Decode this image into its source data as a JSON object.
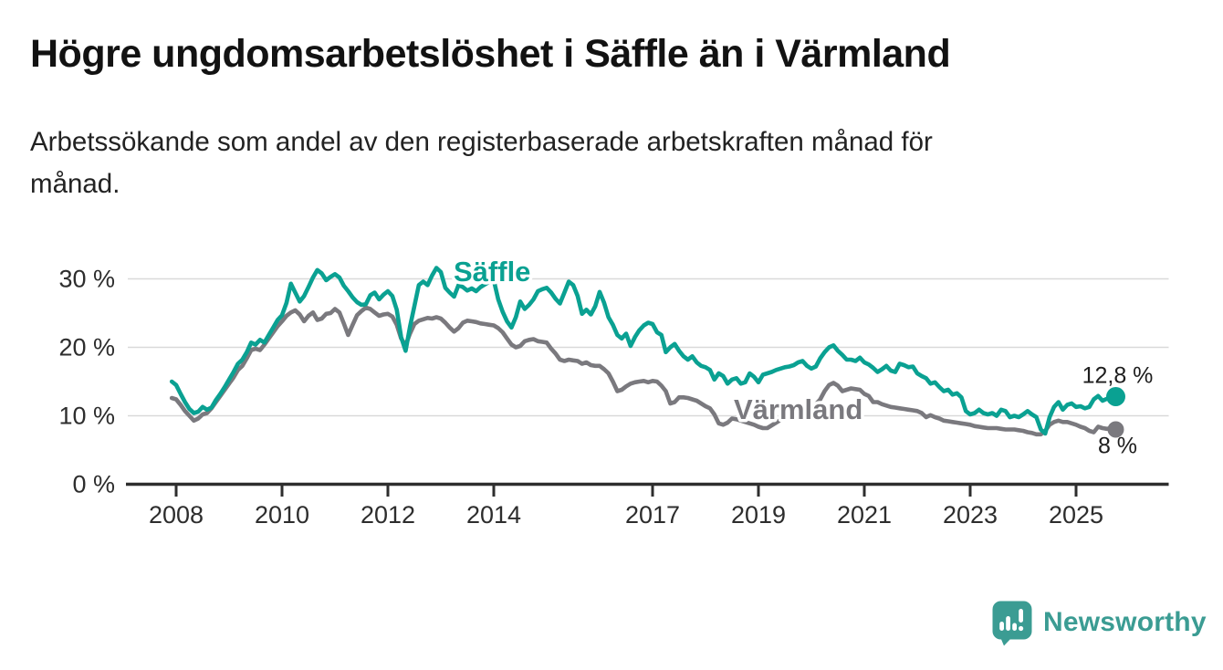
{
  "header": {
    "title": "Högre ungdomsarbetslöshet i Säffle än i Värmland",
    "subtitle_lines": [
      "Arbetssökande som andel av den registerbaserade arbetskraften månad för",
      "månad."
    ]
  },
  "chart_data": {
    "type": "line",
    "title": "Högre ungdomsarbetslöshet i Säffle än i Värmland",
    "subtitle": "Arbetssökande som andel av den registerbaserade arbetskraften månad för månad.",
    "unit": "%",
    "x_frequency": "monthly",
    "x_start": "2007-12",
    "x_end": "2025-10",
    "x_tick_years": [
      2008,
      2010,
      2012,
      2014,
      2017,
      2019,
      2021,
      2023,
      2025
    ],
    "y_ticks": [
      {
        "value": 0,
        "label": "0 %"
      },
      {
        "value": 10,
        "label": "10 %"
      },
      {
        "value": 20,
        "label": "20 %"
      },
      {
        "value": 30,
        "label": "30 %"
      }
    ],
    "ylim": [
      0,
      33
    ],
    "grid": "horizontal",
    "legend_position": "inline-labels",
    "series": [
      {
        "name": "Säffle",
        "color": "#0aa192",
        "end_label": "12,8 %",
        "last_value": 12.8,
        "values": [
          15.0,
          14.5,
          13.2,
          12.0,
          11.0,
          10.4,
          10.6,
          11.3,
          10.9,
          11.2,
          12.3,
          13.2,
          14.2,
          15.3,
          16.4,
          17.6,
          18.2,
          19.3,
          20.7,
          20.4,
          21.1,
          20.7,
          21.8,
          22.9,
          24.0,
          24.7,
          26.5,
          29.3,
          28.0,
          26.7,
          27.5,
          28.8,
          30.2,
          31.3,
          30.8,
          29.8,
          30.3,
          30.7,
          30.2,
          29.0,
          28.2,
          27.3,
          26.6,
          26.2,
          26.3,
          27.6,
          28.0,
          27.0,
          27.7,
          28.2,
          27.5,
          25.5,
          21.5,
          19.5,
          23.0,
          26.0,
          29.1,
          29.6,
          29.1,
          30.5,
          31.6,
          31.0,
          28.7,
          28.0,
          27.4,
          29.1,
          28.8,
          28.3,
          28.6,
          28.2,
          28.8,
          29.2,
          29.6,
          29.8,
          27.0,
          25.2,
          23.8,
          22.9,
          24.4,
          26.7,
          25.6,
          26.2,
          27.0,
          28.2,
          28.5,
          28.7,
          28.0,
          27.1,
          26.4,
          28.0,
          29.6,
          29.1,
          27.5,
          24.9,
          25.5,
          24.8,
          26.0,
          28.1,
          26.5,
          24.4,
          23.3,
          21.8,
          21.3,
          22.0,
          20.2,
          21.5,
          22.5,
          23.2,
          23.6,
          23.4,
          22.2,
          21.8,
          19.3,
          20.0,
          20.5,
          19.5,
          18.7,
          18.2,
          18.7,
          17.8,
          17.3,
          17.1,
          16.7,
          15.3,
          16.2,
          15.8,
          14.7,
          15.3,
          15.5,
          14.7,
          14.9,
          16.2,
          15.7,
          14.9,
          16.0,
          16.2,
          16.4,
          16.7,
          16.9,
          17.1,
          17.2,
          17.4,
          17.8,
          18.0,
          17.3,
          16.9,
          17.2,
          18.4,
          19.3,
          20.0,
          20.3,
          19.5,
          18.9,
          18.2,
          18.2,
          18.0,
          18.5,
          17.8,
          17.5,
          17.0,
          16.4,
          16.8,
          17.3,
          16.6,
          16.4,
          17.6,
          17.4,
          17.1,
          17.2,
          16.2,
          15.8,
          15.5,
          14.7,
          14.9,
          14.2,
          13.6,
          13.8,
          13.1,
          13.3,
          12.7,
          10.7,
          10.2,
          10.4,
          10.9,
          10.4,
          10.2,
          10.4,
          10.0,
          10.9,
          10.7,
          9.8,
          10.0,
          9.8,
          10.2,
          10.7,
          10.2,
          9.8,
          8.0,
          7.4,
          9.8,
          11.3,
          12.0,
          10.9,
          11.6,
          11.8,
          11.3,
          11.4,
          11.1,
          11.3,
          12.4,
          12.9,
          12.2,
          12.5,
          12.6,
          12.8
        ]
      },
      {
        "name": "Värmland",
        "color": "#7a797e",
        "end_label": "8 %",
        "last_value": 8.0,
        "values": [
          12.6,
          12.4,
          11.6,
          10.7,
          10.0,
          9.3,
          9.6,
          10.2,
          10.4,
          11.1,
          12.0,
          12.9,
          13.8,
          14.7,
          15.6,
          16.7,
          17.3,
          18.4,
          19.6,
          19.8,
          19.6,
          20.4,
          21.3,
          22.2,
          23.1,
          23.8,
          24.6,
          25.1,
          25.4,
          24.8,
          23.8,
          24.6,
          25.1,
          24.0,
          24.2,
          24.9,
          25.0,
          25.6,
          25.1,
          23.5,
          21.8,
          23.3,
          24.7,
          25.3,
          25.8,
          25.6,
          25.1,
          24.6,
          24.8,
          24.9,
          24.5,
          23.3,
          21.3,
          20.3,
          22.0,
          23.4,
          23.9,
          24.1,
          24.3,
          24.2,
          24.4,
          24.2,
          23.6,
          22.9,
          22.3,
          22.8,
          23.6,
          23.9,
          23.8,
          23.7,
          23.5,
          23.4,
          23.3,
          23.2,
          22.8,
          22.2,
          21.3,
          20.4,
          20.0,
          20.2,
          20.9,
          21.1,
          21.2,
          20.9,
          20.8,
          20.7,
          19.8,
          19.1,
          18.2,
          18.0,
          18.2,
          18.1,
          18.0,
          17.6,
          17.8,
          17.4,
          17.3,
          17.3,
          16.8,
          16.2,
          15.0,
          13.6,
          13.8,
          14.3,
          14.7,
          14.9,
          15.0,
          15.1,
          14.9,
          15.1,
          15.0,
          14.4,
          13.6,
          11.8,
          12.0,
          12.7,
          12.7,
          12.6,
          12.4,
          12.2,
          11.8,
          11.4,
          11.1,
          10.2,
          8.9,
          8.7,
          9.0,
          9.6,
          9.5,
          9.3,
          9.1,
          8.9,
          8.7,
          8.4,
          8.2,
          8.2,
          8.6,
          9.0,
          9.4,
          9.7,
          10.0,
          10.2,
          10.4,
          10.6,
          10.9,
          11.3,
          11.7,
          12.4,
          13.6,
          14.5,
          14.8,
          14.4,
          13.6,
          13.8,
          14.0,
          13.9,
          13.8,
          13.2,
          12.9,
          12.0,
          12.0,
          11.7,
          11.5,
          11.3,
          11.2,
          11.1,
          11.0,
          10.9,
          10.8,
          10.7,
          10.4,
          9.8,
          10.1,
          9.8,
          9.6,
          9.3,
          9.2,
          9.1,
          9.0,
          8.9,
          8.8,
          8.7,
          8.5,
          8.4,
          8.3,
          8.2,
          8.2,
          8.2,
          8.1,
          8.0,
          8.0,
          8.0,
          7.9,
          7.8,
          7.6,
          7.5,
          7.3,
          7.3,
          7.8,
          8.7,
          9.1,
          9.3,
          9.1,
          9.1,
          8.9,
          8.7,
          8.4,
          8.2,
          7.8,
          7.6,
          8.4,
          8.2,
          8.1,
          8.2,
          8.0
        ]
      }
    ]
  },
  "footer": {
    "brand": "Newsworthy",
    "brand_color": "#3b9c93",
    "logo_icon": "speech-bubble-bar-chart-icon"
  }
}
